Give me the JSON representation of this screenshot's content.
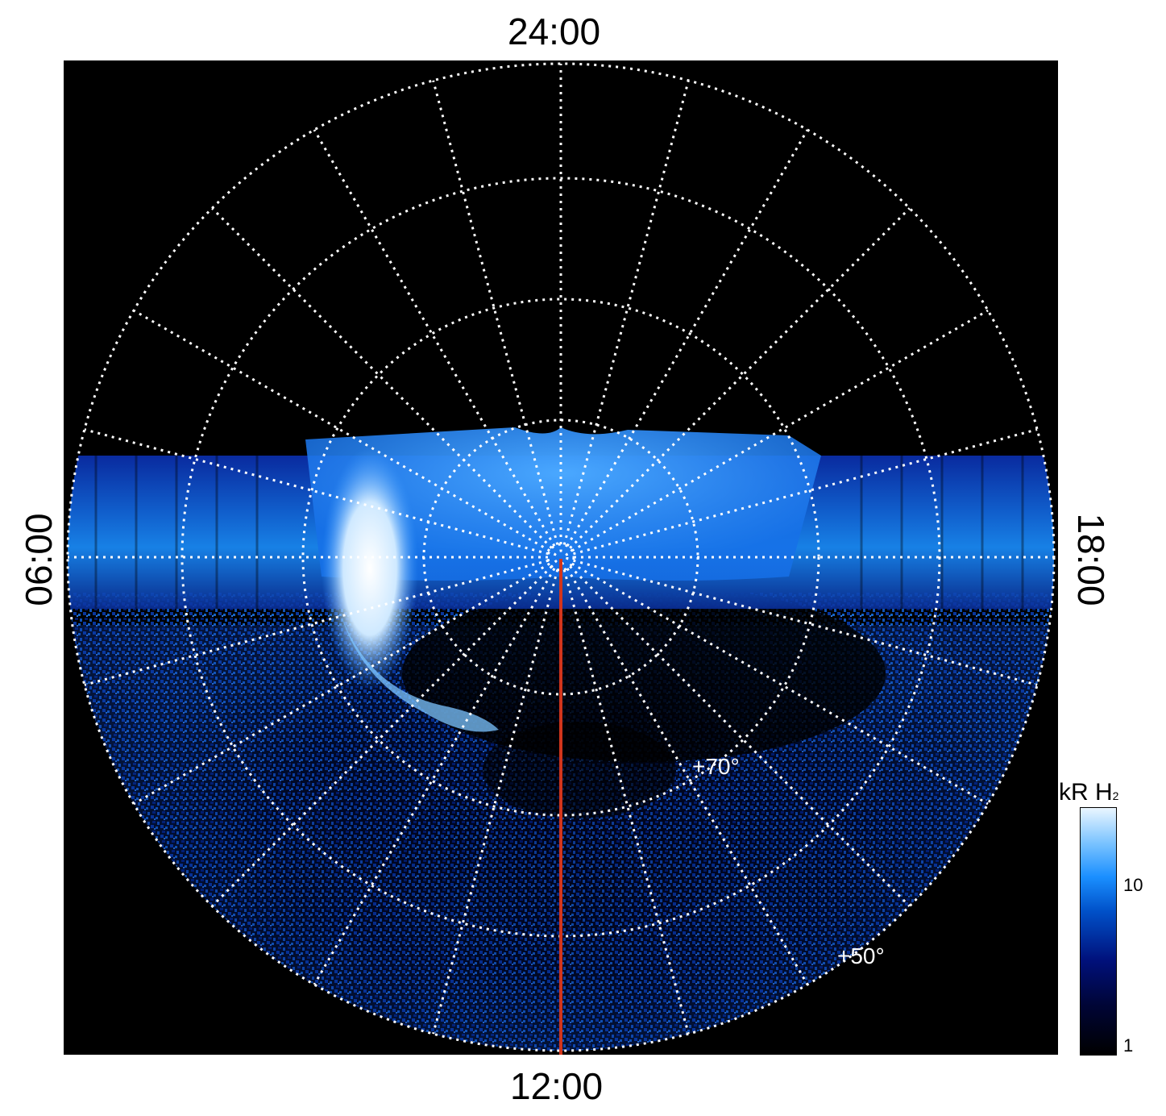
{
  "lt_labels": {
    "top": "24:00",
    "bottom": "12:00",
    "left": "06:00",
    "right": "18:00"
  },
  "lat_labels": {
    "inner": "+70°",
    "outer": "+50°"
  },
  "colorbar": {
    "title": "kR H",
    "title_subscript": "2",
    "ticks": [
      "10",
      "1"
    ],
    "scale": "log",
    "colors": [
      "#000000",
      "#00107a",
      "#0050c8",
      "#1a8fff",
      "#7cc4ff",
      "#eaf6ff"
    ]
  },
  "colors": {
    "background": "#000000",
    "grid": "#ffffff",
    "meridian_line": "#d2351c",
    "aurora_bright": "#eaf6ff",
    "aurora_mid": "#1a8fff",
    "aurora_dim": "#00107a"
  }
}
